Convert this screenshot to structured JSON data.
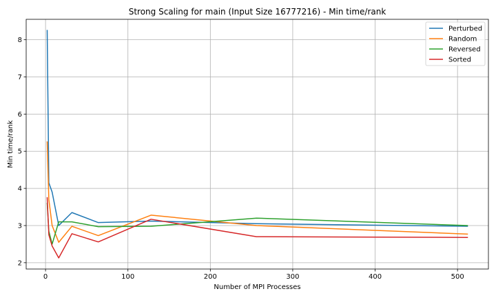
{
  "chart_data": {
    "type": "line",
    "title": "Strong Scaling for main (Input Size 16777216) - Min time/rank",
    "xlabel": "Number of MPI Processes",
    "ylabel": "Min time/rank",
    "xlim": [
      -23.5,
      537.5
    ],
    "ylim": [
      1.83,
      8.55
    ],
    "xticks": [
      0,
      100,
      200,
      300,
      400,
      500
    ],
    "yticks": [
      2,
      3,
      4,
      5,
      6,
      7,
      8
    ],
    "grid": true,
    "legend_position": "top-right",
    "x": [
      2,
      4,
      8,
      16,
      32,
      64,
      128,
      256,
      512
    ],
    "series": [
      {
        "name": "Perturbed",
        "color": "#1f77b4",
        "values": [
          8.25,
          4.15,
          3.9,
          3.0,
          3.35,
          3.08,
          3.12,
          3.05,
          2.98
        ]
      },
      {
        "name": "Random",
        "color": "#ff7f0e",
        "values": [
          5.25,
          3.7,
          3.0,
          2.55,
          2.98,
          2.73,
          3.28,
          3.0,
          2.77
        ]
      },
      {
        "name": "Reversed",
        "color": "#2ca02c",
        "values": [
          3.6,
          2.85,
          2.5,
          3.1,
          3.1,
          2.97,
          2.98,
          3.2,
          3.0
        ]
      },
      {
        "name": "Sorted",
        "color": "#d62728",
        "values": [
          3.75,
          2.75,
          2.45,
          2.13,
          2.78,
          2.56,
          3.17,
          2.7,
          2.68
        ]
      }
    ]
  }
}
